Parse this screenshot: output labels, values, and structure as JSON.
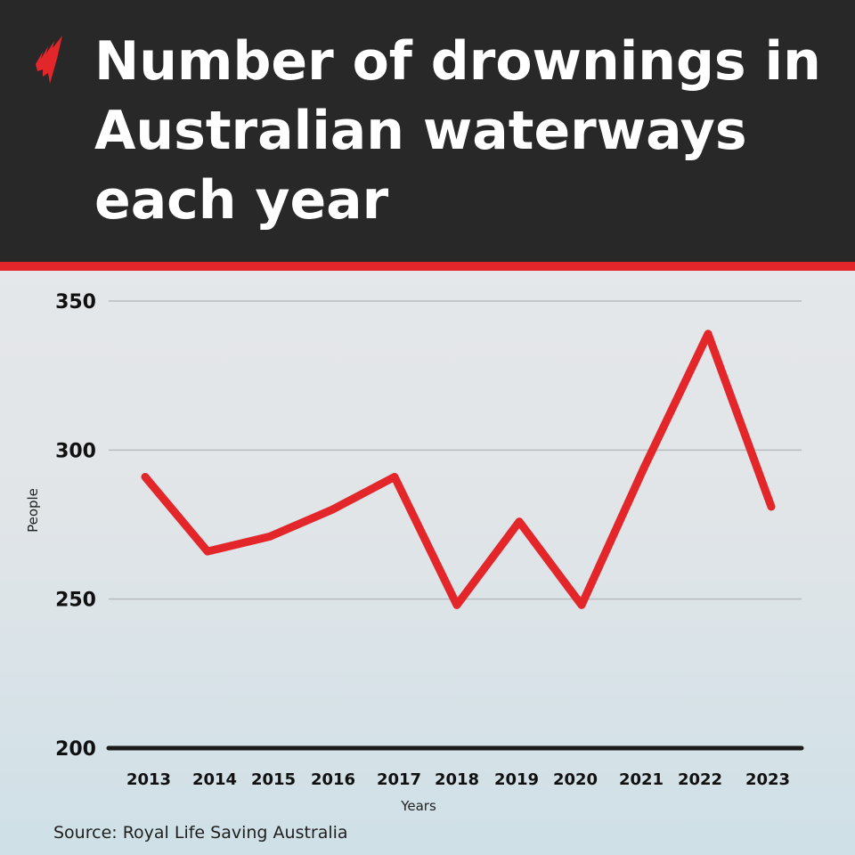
{
  "header": {
    "title": "Number of drownings in Australian waterways each year",
    "logo": "sbs-logo-icon"
  },
  "source": "Source: Royal Life Saving Australia",
  "colors": {
    "header_bg": "#282828",
    "accent": "#e3262a",
    "line": "#e3262a"
  },
  "chart_data": {
    "type": "line",
    "title": "Number of drownings in Australian waterways each year",
    "xlabel": "Years",
    "ylabel": "People",
    "categories": [
      "2013",
      "2014",
      "2015",
      "2016",
      "2017",
      "2018",
      "2019",
      "2020",
      "2021",
      "2022",
      "2023"
    ],
    "values": [
      291,
      266,
      271,
      280,
      291,
      248,
      276,
      248,
      294,
      339,
      281
    ],
    "ylim": [
      200,
      350
    ],
    "yticks": [
      "200",
      "250",
      "300",
      "350"
    ],
    "grid": true,
    "legend": "none"
  }
}
